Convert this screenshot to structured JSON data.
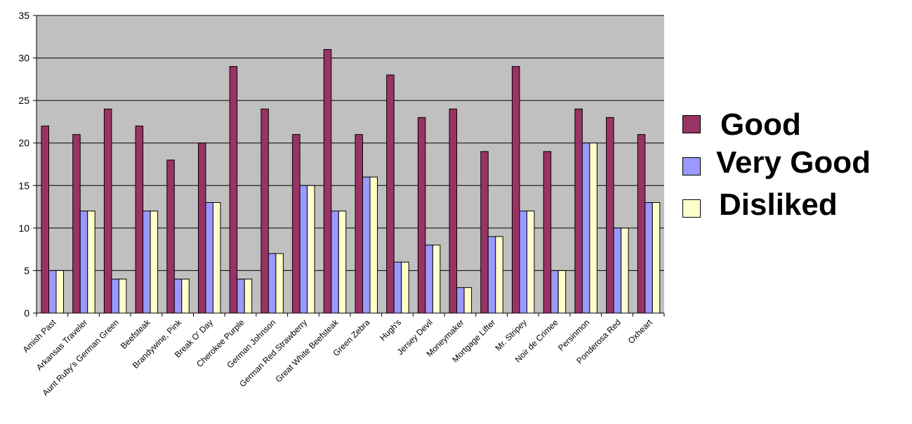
{
  "chart_data": {
    "type": "bar",
    "title": "",
    "xlabel": "",
    "ylabel": "",
    "ylim": [
      0,
      35
    ],
    "yticks": [
      "0",
      "5",
      "10",
      "15",
      "20",
      "25",
      "30",
      "35"
    ],
    "grid": true,
    "legend_position": "right",
    "plot_background": "#c0c0c0",
    "categories": [
      "Amish Past",
      "Arkansas Traveler",
      "Aunt Ruby's German Green",
      "Beefsteak",
      "Brandywine, Pink",
      "Break O' Day",
      "Cherokee Purple",
      "German Johnson",
      "German Red Strawberry",
      "Great White Beefsteak",
      "Green Zebra",
      "Hugh's",
      "Jersey Devil",
      "Moneymaker",
      "Mortgage Lifter",
      "Mr. Stripey",
      "Noir de Crimee",
      "Persinmon",
      "Ponderosa Red",
      "Oxheart"
    ],
    "series": [
      {
        "name": "Good",
        "color": "#993366",
        "values": [
          22,
          21,
          24,
          22,
          18,
          20,
          29,
          24,
          21,
          31,
          21,
          28,
          23,
          24,
          19,
          29,
          19,
          24,
          23,
          21
        ]
      },
      {
        "name": "Very Good",
        "color": "#9999ff",
        "values": [
          5,
          12,
          4,
          12,
          4,
          13,
          4,
          7,
          15,
          12,
          16,
          6,
          8,
          3,
          9,
          12,
          5,
          20,
          10,
          13
        ]
      },
      {
        "name": "Disliked",
        "color": "#ffffcc",
        "values": [
          5,
          12,
          4,
          12,
          4,
          13,
          4,
          7,
          15,
          12,
          16,
          6,
          8,
          3,
          9,
          12,
          5,
          20,
          10,
          13
        ]
      }
    ]
  }
}
